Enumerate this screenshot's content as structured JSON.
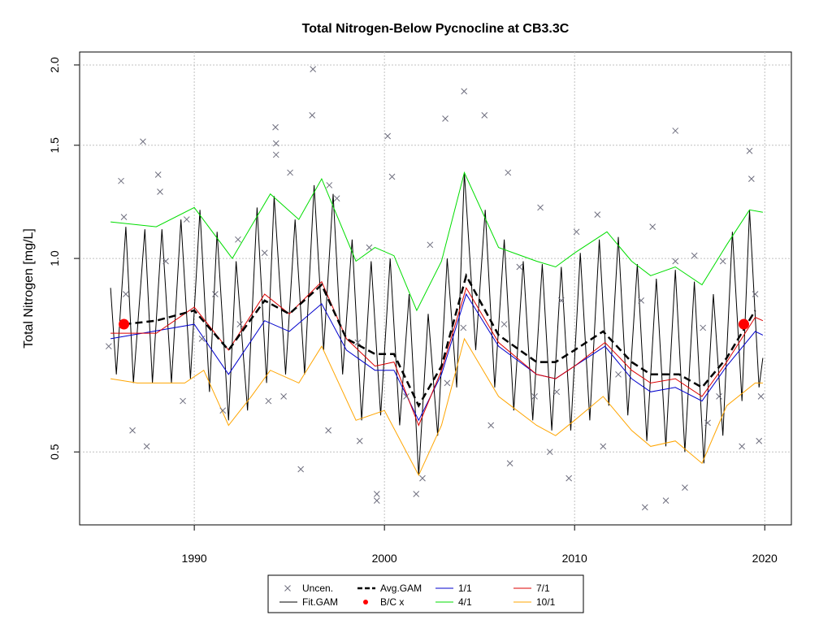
{
  "chart_data": {
    "type": "line",
    "title": "Total Nitrogen-Below Pycnocline at CB3.3C",
    "y_label": "Total Nitrogen [mg/L]",
    "xlim": [
      1983.97,
      2021.4
    ],
    "xticks": [
      1990,
      2000,
      2010,
      2020
    ],
    "ylim": [
      0.385,
      2.095
    ],
    "log_y": true,
    "yticks": [
      0.5,
      {
        "value": 1.0,
        "label": "1.0"
      },
      1.5,
      {
        "value": 2.0,
        "label": "2.0"
      }
    ],
    "grid": true,
    "series": [
      {
        "name": "Uncen.",
        "color": "#6e6e7e",
        "style": "cross",
        "x": [
          1996.24,
          2004.19,
          2003.2,
          2005.26,
          1996.2,
          1994.27,
          2000.17,
          2015.3,
          1987.3,
          1994.3,
          1994.3,
          2019.2,
          1986.15,
          1988.1,
          2000.4,
          2019.3,
          2006.5,
          1997.1,
          1988.2,
          1995.04,
          1986.3,
          1992.3,
          2008.2,
          2011.2,
          2014.1,
          2010.1,
          2015.3,
          2016.3,
          2019.5,
          1986.4,
          1990.4,
          1985.5,
          1989.4,
          1995.6,
          1987.5,
          1986.75,
          1999.6,
          1999.6,
          2001.67,
          2002.0,
          2013.7,
          2014.8,
          2015.8,
          2009.7,
          2006.6,
          2008.7,
          2018.8,
          2019.7,
          2019.8,
          2005.6,
          2011.5,
          1997.05,
          1998.7,
          1994.7,
          1993.9,
          1991.5,
          2007.9,
          2009.06,
          2012.3,
          2017.6,
          2017.0,
          2001.15,
          2003.3,
          1998.6,
          2004.15,
          2006.3,
          2009.3,
          2013.5,
          2016.75,
          1992.4,
          1989.6,
          1988.5,
          1991.1,
          1993.7,
          1997.5,
          1999.2,
          2002.4,
          2007.1,
          2017.8
        ],
        "values": [
          1.97,
          1.82,
          1.65,
          1.67,
          1.67,
          1.6,
          1.55,
          1.58,
          1.52,
          1.51,
          1.45,
          1.47,
          1.32,
          1.35,
          1.34,
          1.33,
          1.36,
          1.3,
          1.27,
          1.36,
          1.16,
          1.07,
          1.2,
          1.17,
          1.12,
          1.1,
          0.99,
          1.01,
          0.88,
          0.88,
          0.75,
          0.73,
          0.6,
          0.47,
          0.51,
          0.54,
          0.43,
          0.42,
          0.43,
          0.455,
          0.41,
          0.42,
          0.44,
          0.455,
          0.48,
          0.5,
          0.51,
          0.52,
          0.61,
          0.55,
          0.51,
          0.54,
          0.52,
          0.61,
          0.6,
          0.58,
          0.61,
          0.62,
          0.66,
          0.61,
          0.555,
          0.61,
          0.64,
          0.74,
          0.78,
          0.79,
          0.86,
          0.86,
          0.78,
          0.79,
          1.15,
          0.99,
          0.88,
          1.02,
          1.24,
          1.04,
          1.05,
          0.97,
          0.99
        ]
      },
      {
        "name": "Fit.GAM",
        "color": "#000000",
        "style": "line",
        "width": 1,
        "x": [
          1985.6,
          1985.9,
          1986.4,
          1986.8,
          1987.4,
          1987.8,
          1988.3,
          1988.8,
          1989.3,
          1989.8,
          1990.3,
          1990.8,
          1991.2,
          1991.8,
          1992.2,
          1992.8,
          1993.3,
          1993.8,
          1994.2,
          1994.8,
          1995.3,
          1995.8,
          1996.3,
          1996.8,
          1997.3,
          1997.8,
          1998.3,
          1998.8,
          1999.3,
          1999.8,
          2000.3,
          2000.8,
          2001.3,
          2001.8,
          2002.3,
          2002.8,
          2003.3,
          2003.8,
          2004.2,
          2004.8,
          2005.3,
          2005.8,
          2006.3,
          2006.8,
          2007.3,
          2007.8,
          2008.3,
          2008.8,
          2009.3,
          2009.8,
          2010.3,
          2010.8,
          2011.3,
          2011.8,
          2012.3,
          2012.8,
          2013.3,
          2013.8,
          2014.3,
          2014.8,
          2015.3,
          2015.8,
          2016.3,
          2016.8,
          2017.3,
          2017.8,
          2018.3,
          2018.8,
          2019.2,
          2019.7,
          2019.9
        ],
        "values": [
          0.9,
          0.66,
          1.12,
          0.64,
          1.11,
          0.64,
          1.11,
          0.64,
          1.15,
          0.65,
          1.19,
          0.62,
          1.1,
          0.56,
          0.99,
          0.58,
          1.2,
          0.64,
          1.25,
          0.66,
          1.15,
          0.66,
          1.3,
          0.72,
          1.26,
          0.66,
          1.07,
          0.56,
          0.99,
          0.57,
          1.0,
          0.55,
          0.88,
          0.46,
          0.82,
          0.53,
          1.0,
          0.63,
          1.36,
          0.72,
          1.19,
          0.63,
          1.07,
          0.58,
          0.99,
          0.56,
          0.98,
          0.54,
          0.97,
          0.54,
          1.02,
          0.56,
          1.07,
          0.59,
          1.08,
          0.57,
          0.98,
          0.52,
          0.93,
          0.51,
          0.96,
          0.5,
          0.92,
          0.48,
          0.88,
          0.53,
          1.1,
          0.6,
          1.19,
          0.63,
          0.7
        ]
      },
      {
        "name": "Avg.GAM",
        "color": "#000000",
        "style": "dashed",
        "width": 2.5,
        "x": [
          1986.3,
          1988,
          1990,
          1991.8,
          1993.7,
          1995,
          1996.7,
          1998,
          1999.5,
          2000.5,
          2001.8,
          2003,
          2004.3,
          2006,
          2008,
          2009,
          2010,
          2011.5,
          2013,
          2014,
          2015.5,
          2016.7,
          2018,
          2019.5
        ],
        "values": [
          0.79,
          0.8,
          0.83,
          0.72,
          0.86,
          0.82,
          0.91,
          0.75,
          0.71,
          0.71,
          0.59,
          0.68,
          0.94,
          0.76,
          0.69,
          0.69,
          0.72,
          0.77,
          0.69,
          0.66,
          0.66,
          0.63,
          0.7,
          0.83
        ]
      },
      {
        "name": "B/C x",
        "color": "#ff0000",
        "style": "dot",
        "x": [
          1986.3,
          2018.9
        ],
        "values": [
          0.79,
          0.79
        ]
      },
      {
        "name": "1/1",
        "color": "#0000cc",
        "style": "line",
        "width": 1,
        "x": [
          1985.6,
          1990,
          1991.8,
          1993.7,
          1995,
          1996.7,
          1998,
          1999.5,
          2000.5,
          2001.8,
          2003,
          2004.3,
          2006,
          2008,
          2009,
          2010,
          2011.6,
          2013,
          2014,
          2015.3,
          2016.7,
          2018,
          2019.5,
          2019.9
        ],
        "values": [
          0.75,
          0.79,
          0.66,
          0.8,
          0.77,
          0.85,
          0.72,
          0.67,
          0.67,
          0.56,
          0.66,
          0.88,
          0.73,
          0.66,
          0.65,
          0.68,
          0.73,
          0.65,
          0.62,
          0.63,
          0.6,
          0.68,
          0.77,
          0.76
        ]
      },
      {
        "name": "4/1",
        "color": "#00dd00",
        "style": "line",
        "width": 1,
        "x": [
          1985.6,
          1988,
          1990,
          1992,
          1994,
          1995.5,
          1996.7,
          1998.5,
          1999.5,
          2000.5,
          2001.7,
          2003,
          2004.2,
          2006,
          2008,
          2009,
          2010,
          2011.7,
          2013,
          2014,
          2015.3,
          2016.7,
          2018,
          2019.2,
          2019.9
        ],
        "values": [
          1.14,
          1.12,
          1.2,
          1.0,
          1.26,
          1.15,
          1.33,
          0.99,
          1.04,
          1.01,
          0.83,
          0.99,
          1.36,
          1.04,
          0.99,
          0.97,
          1.02,
          1.1,
          0.99,
          0.94,
          0.97,
          0.91,
          1.05,
          1.19,
          1.18
        ]
      },
      {
        "name": "7/1",
        "color": "#dd0000",
        "style": "line",
        "width": 1,
        "x": [
          1985.6,
          1988,
          1990,
          1991.8,
          1993.7,
          1995,
          1996.7,
          1998,
          1999.5,
          2000.5,
          2001.8,
          2003,
          2004.3,
          2006,
          2008,
          2009,
          2010,
          2011.6,
          2013,
          2014,
          2015.3,
          2016.7,
          2018,
          2019.5,
          2019.9
        ],
        "values": [
          0.765,
          0.765,
          0.84,
          0.72,
          0.88,
          0.82,
          0.92,
          0.75,
          0.68,
          0.69,
          0.55,
          0.67,
          0.9,
          0.74,
          0.66,
          0.65,
          0.68,
          0.74,
          0.67,
          0.64,
          0.65,
          0.61,
          0.69,
          0.81,
          0.8
        ]
      },
      {
        "name": "10/1",
        "color": "#ffa500",
        "style": "line",
        "width": 1,
        "x": [
          1985.6,
          1987,
          1989.5,
          1990.5,
          1991.8,
          1993,
          1994,
          1995.5,
          1996.7,
          1998.5,
          2000,
          2001.8,
          2003,
          2004.2,
          2006,
          2008,
          2009,
          2010,
          2011.5,
          2013,
          2014,
          2015.3,
          2016.7,
          2018,
          2019.5,
          2019.9
        ],
        "values": [
          0.65,
          0.64,
          0.64,
          0.67,
          0.55,
          0.61,
          0.67,
          0.64,
          0.73,
          0.56,
          0.58,
          0.46,
          0.55,
          0.75,
          0.61,
          0.55,
          0.53,
          0.56,
          0.61,
          0.54,
          0.51,
          0.52,
          0.48,
          0.59,
          0.64,
          0.64
        ]
      }
    ]
  }
}
